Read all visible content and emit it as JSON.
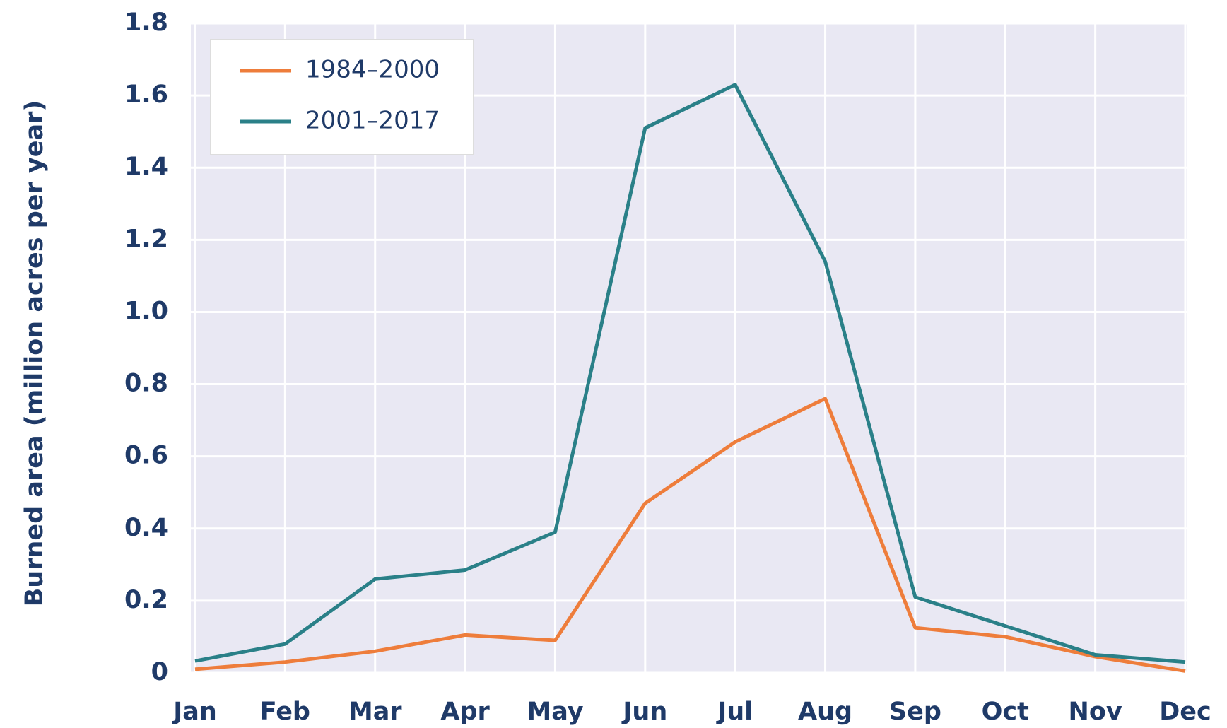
{
  "chart_data": {
    "type": "line",
    "y_label": "Burned area (million acres per year)",
    "categories": [
      "Jan",
      "Feb",
      "Mar",
      "Apr",
      "May",
      "Jun",
      "Jul",
      "Aug",
      "Sep",
      "Oct",
      "Nov",
      "Dec"
    ],
    "series": [
      {
        "name": "1984–2000",
        "color": "#ee7d3b",
        "values": [
          0.01,
          0.03,
          0.06,
          0.105,
          0.09,
          0.47,
          0.64,
          0.76,
          0.125,
          0.1,
          0.045,
          0.005
        ]
      },
      {
        "name": "2001–2017",
        "color": "#2a8088",
        "values": [
          0.033,
          0.08,
          0.26,
          0.285,
          0.39,
          1.51,
          1.63,
          1.14,
          0.21,
          0.13,
          0.05,
          0.03
        ]
      }
    ],
    "ylim": [
      0,
      1.8
    ],
    "yticks": [
      0,
      0.2,
      0.4,
      0.6,
      0.8,
      {
        "value": 1,
        "label": "1.0"
      },
      1.2,
      1.4,
      1.6,
      1.8
    ],
    "grid": true,
    "legend": "upper left"
  }
}
